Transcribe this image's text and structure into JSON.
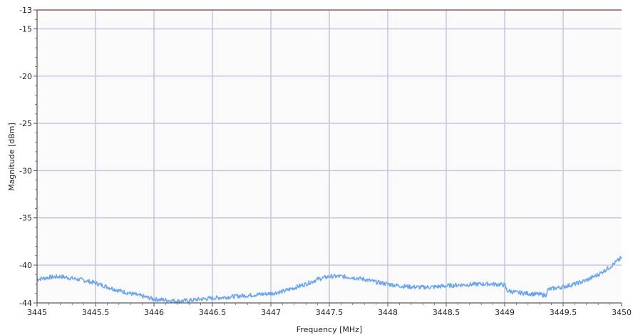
{
  "chart_data": {
    "type": "line",
    "title": "",
    "xlabel": "Frequency [MHz]",
    "ylabel": "Magnitude [dBm]",
    "xlim": [
      3445,
      3450
    ],
    "ylim": [
      -44,
      -13
    ],
    "x_ticks": [
      3445,
      3445.5,
      3446,
      3446.5,
      3447,
      3447.5,
      3448,
      3448.5,
      3449,
      3449.5,
      3450
    ],
    "x_tick_labels": [
      "3445",
      "3445.5",
      "3446",
      "3446.5",
      "3447",
      "3447.5",
      "3448",
      "3448.5",
      "3449",
      "3449.5",
      "3450"
    ],
    "y_ticks": [
      -13,
      -15,
      -20,
      -25,
      -30,
      -35,
      -40,
      -44
    ],
    "y_tick_labels": [
      "-13",
      "-15",
      "-20",
      "-25",
      "-30",
      "-35",
      "-40",
      "-44"
    ],
    "grid": true,
    "series": [
      {
        "color": "#6ea6ec",
        "x": [
          3445.0,
          3445.1,
          3445.2,
          3445.3,
          3445.4,
          3445.5,
          3445.6,
          3445.7,
          3445.8,
          3445.9,
          3446.0,
          3446.1,
          3446.2,
          3446.3,
          3446.4,
          3446.5,
          3446.6,
          3446.7,
          3446.8,
          3446.9,
          3447.0,
          3447.1,
          3447.2,
          3447.3,
          3447.4,
          3447.5,
          3447.6,
          3447.7,
          3447.8,
          3447.9,
          3448.0,
          3448.1,
          3448.2,
          3448.3,
          3448.4,
          3448.5,
          3448.6,
          3448.7,
          3448.8,
          3448.9,
          3449.0,
          3449.02,
          3449.1,
          3449.2,
          3449.3,
          3449.35,
          3449.37,
          3449.4,
          3449.5,
          3449.6,
          3449.7,
          3449.8,
          3449.9,
          3450.0
        ],
        "y": [
          -41.5,
          -41.3,
          -41.2,
          -41.4,
          -41.6,
          -41.9,
          -42.3,
          -42.7,
          -43.0,
          -43.3,
          -43.6,
          -43.7,
          -43.8,
          -43.75,
          -43.6,
          -43.5,
          -43.4,
          -43.3,
          -43.2,
          -43.1,
          -43.0,
          -42.8,
          -42.4,
          -42.0,
          -41.5,
          -41.2,
          -41.2,
          -41.3,
          -41.5,
          -41.8,
          -42.0,
          -42.2,
          -42.3,
          -42.35,
          -42.3,
          -42.2,
          -42.1,
          -42.05,
          -42.0,
          -42.0,
          -42.1,
          -42.7,
          -42.9,
          -43.0,
          -43.1,
          -43.2,
          -42.6,
          -42.5,
          -42.3,
          -42.0,
          -41.6,
          -41.0,
          -40.2,
          -39.2
        ]
      }
    ]
  }
}
